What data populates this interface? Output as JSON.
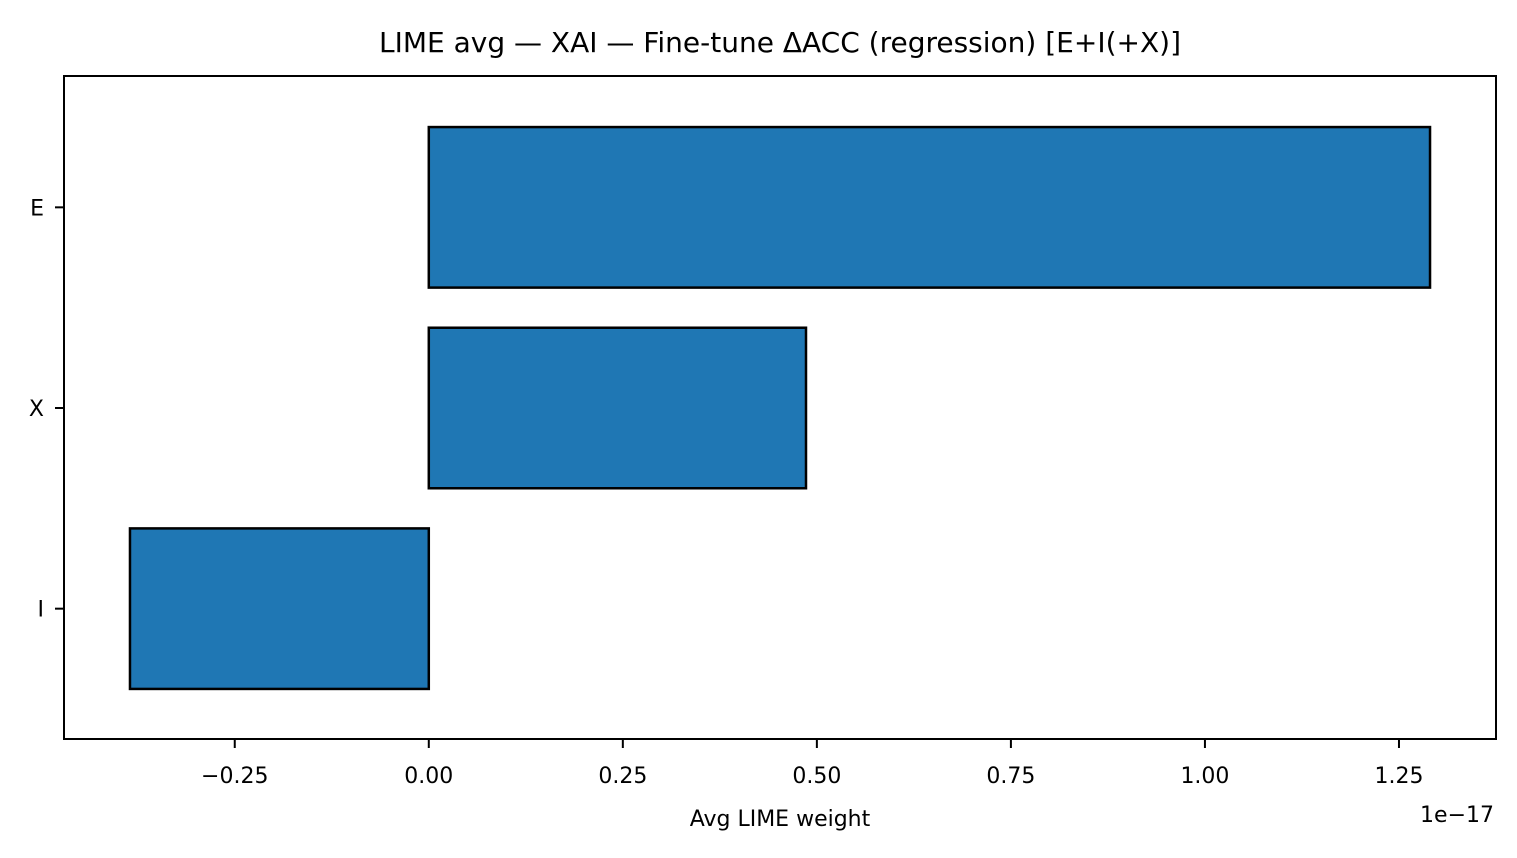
{
  "chart_data": {
    "type": "bar",
    "orientation": "horizontal",
    "title": "LIME avg — XAI — Fine-tune ΔACC (regression) [E+I(+X)]",
    "xlabel": "Avg LIME weight",
    "ylabel": "",
    "offset_text": "1e−17",
    "categories": [
      "E",
      "X",
      "I"
    ],
    "values": [
      1.29,
      0.486,
      -0.385
    ],
    "value_scale": 1e-17,
    "xlim": [
      -0.47,
      1.375
    ],
    "xticks": [
      -0.25,
      0.0,
      0.25,
      0.5,
      0.75,
      1.0,
      1.25
    ],
    "xtick_labels": [
      "−0.25",
      "0.00",
      "0.25",
      "0.50",
      "0.75",
      "1.00",
      "1.25"
    ],
    "grid": false,
    "legend": "none",
    "colors": {
      "bar_fill": "#1f77b4",
      "bar_edge": "#000000",
      "axis": "#000000"
    }
  }
}
